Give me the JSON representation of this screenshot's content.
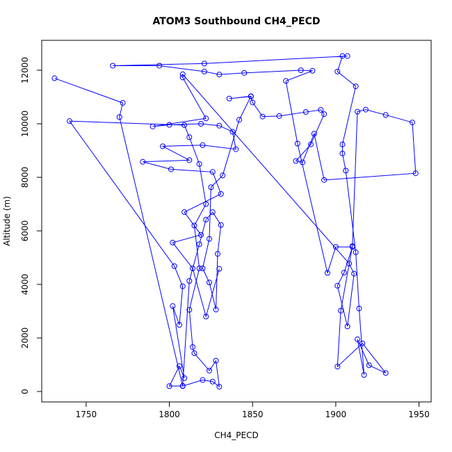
{
  "chart_data": {
    "type": "scatter",
    "title": "ATOM3 Southbound CH4_PECD",
    "x_label": "CH4_PECD",
    "y_label": "Altitude (m)",
    "color": "#0000ff",
    "connect": true,
    "x": [
      1731,
      1772,
      1770,
      1808,
      1820,
      1826,
      1830,
      1828,
      1824,
      1815,
      1814,
      1812,
      1818,
      1815,
      1822,
      1818,
      1812,
      1809,
      1740,
      1803,
      1808,
      1806,
      1802,
      1809,
      1806,
      1800,
      1808,
      1812,
      1818,
      1822,
      1826,
      1831,
      1829,
      1828,
      1824,
      1820,
      1824,
      1825,
      1832,
      1842,
      1849,
      1836,
      1849,
      1850,
      1856,
      1866,
      1882,
      1891,
      1893,
      1885,
      1876,
      1880,
      1887,
      1893,
      1948,
      1946,
      1930,
      1918,
      1913,
      1910,
      1903,
      1901,
      1916,
      1930,
      1920,
      1913,
      1917,
      1914,
      1912,
      1906,
      1904,
      1904,
      1912,
      1901,
      1904,
      1907,
      1821,
      1766,
      1794,
      1821,
      1830,
      1845,
      1879,
      1886,
      1870,
      1877,
      1895,
      1900,
      1910,
      1905,
      1901,
      1907,
      1911,
      1908,
      1808,
      1808,
      1822,
      1790,
      1800,
      1819,
      1830,
      1838,
      1840,
      1820,
      1796,
      1812,
      1784,
      1801,
      1826,
      1831,
      1809,
      1819,
      1802,
      1814,
      1822,
      1830
    ],
    "values": [
      11700,
      10780,
      10250,
      200,
      430,
      370,
      180,
      1150,
      780,
      1430,
      1660,
      3050,
      4600,
      6200,
      7000,
      8500,
      9500,
      9950,
      10100,
      4680,
      3930,
      2490,
      3190,
      500,
      950,
      200,
      210,
      4130,
      5500,
      6420,
      6700,
      6220,
      5140,
      3060,
      4070,
      4600,
      5700,
      7630,
      8070,
      10150,
      11020,
      10940,
      11030,
      10800,
      10270,
      10290,
      10440,
      10520,
      10360,
      9230,
      8610,
      8560,
      9630,
      7900,
      8150,
      10050,
      10330,
      10530,
      10450,
      5430,
      3020,
      930,
      1800,
      690,
      980,
      1950,
      620,
      3100,
      5200,
      8250,
      8890,
      9230,
      11400,
      11950,
      12530,
      12530,
      12250,
      12170,
      12170,
      11950,
      11840,
      11900,
      12000,
      11980,
      11600,
      9260,
      4430,
      5400,
      5400,
      4440,
      3950,
      2430,
      4400,
      4780,
      11850,
      11730,
      10200,
      9900,
      9960,
      10000,
      9930,
      9700,
      9050,
      9200,
      9160,
      8640,
      8580,
      8300,
      8200,
      7380,
      6700,
      5850,
      5560,
      4600,
      2800,
      4580
    ],
    "xlim": [
      1723.3,
      1957.3
    ],
    "ylim": [
      -390,
      13117
    ],
    "xticks": [
      1750,
      1800,
      1850,
      1900,
      1950
    ],
    "yticks": [
      0,
      2000,
      4000,
      6000,
      8000,
      10000,
      12000
    ]
  }
}
